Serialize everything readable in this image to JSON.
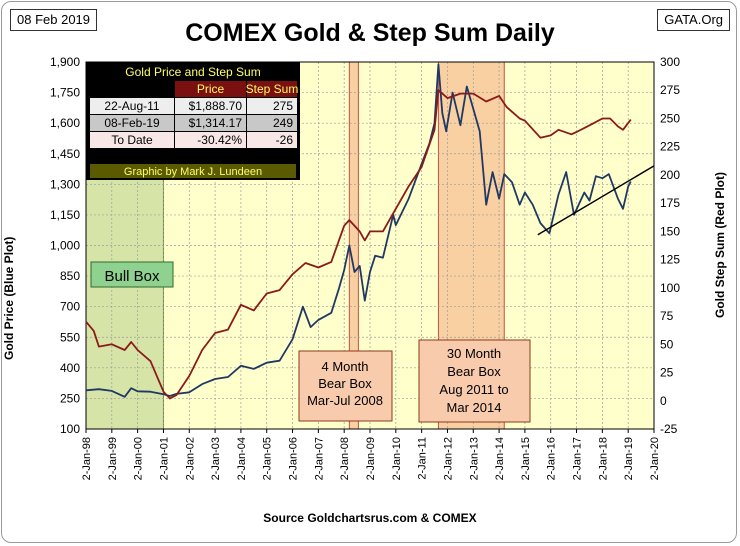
{
  "header": {
    "date_tag": "08 Feb 2019",
    "site_tag": "GATA.Org",
    "title": "COMEX Gold & Step Sum Daily"
  },
  "footer": {
    "source": "Source Goldchartsrus.com & COMEX"
  },
  "colors": {
    "plot_bg": "#ffffcc",
    "gold_line": "#1f3864",
    "step_line": "#8b1a1a",
    "bull_box": "#d6e4a8",
    "bear_box": "#f4b183",
    "table_bg": "#000000",
    "table_title": "#ffff66"
  },
  "chart_data": {
    "type": "line",
    "title": "COMEX Gold & Step Sum Daily",
    "xlabel": "",
    "ylabel": "Gold Price (Blue Plot)",
    "y2label": "Gold Step Sum (Red Plot)",
    "ylim": [
      100,
      1900
    ],
    "y2lim": [
      -25,
      300
    ],
    "grid": true,
    "x_tick_labels": [
      "2-Jan-98",
      "2-Jan-99",
      "2-Jan-00",
      "2-Jan-01",
      "2-Jan-02",
      "2-Jan-03",
      "2-Jan-04",
      "2-Jan-05",
      "2-Jan-06",
      "2-Jan-07",
      "2-Jan-08",
      "2-Jan-09",
      "2-Jan-10",
      "2-Jan-11",
      "2-Jan-12",
      "2-Jan-13",
      "2-Jan-14",
      "2-Jan-15",
      "2-Jan-16",
      "2-Jan-17",
      "2-Jan-18",
      "2-Jan-19",
      "2-Jan-20"
    ],
    "y_ticks": [
      100,
      250,
      400,
      550,
      700,
      850,
      1000,
      1150,
      1300,
      1450,
      1600,
      1750,
      1900
    ],
    "y2_ticks": [
      -25,
      0,
      25,
      50,
      75,
      100,
      125,
      150,
      175,
      200,
      225,
      250,
      275,
      300
    ],
    "series": [
      {
        "name": "Blue Plot",
        "axis": "left",
        "color": "#1f3864",
        "points": [
          [
            1998.0,
            290
          ],
          [
            1998.5,
            295
          ],
          [
            1999.0,
            287
          ],
          [
            1999.5,
            258
          ],
          [
            1999.75,
            300
          ],
          [
            2000.0,
            285
          ],
          [
            2000.5,
            283
          ],
          [
            2001.0,
            270
          ],
          [
            2001.25,
            262
          ],
          [
            2001.5,
            272
          ],
          [
            2002.0,
            280
          ],
          [
            2002.5,
            320
          ],
          [
            2003.0,
            345
          ],
          [
            2003.5,
            355
          ],
          [
            2004.0,
            410
          ],
          [
            2004.5,
            395
          ],
          [
            2005.0,
            425
          ],
          [
            2005.5,
            435
          ],
          [
            2006.0,
            540
          ],
          [
            2006.4,
            700
          ],
          [
            2006.7,
            600
          ],
          [
            2007.0,
            635
          ],
          [
            2007.5,
            670
          ],
          [
            2007.8,
            790
          ],
          [
            2008.0,
            880
          ],
          [
            2008.2,
            1000
          ],
          [
            2008.4,
            870
          ],
          [
            2008.6,
            900
          ],
          [
            2008.8,
            730
          ],
          [
            2009.0,
            870
          ],
          [
            2009.2,
            950
          ],
          [
            2009.5,
            940
          ],
          [
            2009.9,
            1150
          ],
          [
            2010.0,
            1100
          ],
          [
            2010.5,
            1230
          ],
          [
            2011.0,
            1400
          ],
          [
            2011.3,
            1500
          ],
          [
            2011.5,
            1600
          ],
          [
            2011.65,
            1888
          ],
          [
            2011.8,
            1650
          ],
          [
            2011.95,
            1560
          ],
          [
            2012.2,
            1750
          ],
          [
            2012.5,
            1590
          ],
          [
            2012.75,
            1780
          ],
          [
            2013.0,
            1670
          ],
          [
            2013.25,
            1560
          ],
          [
            2013.5,
            1200
          ],
          [
            2013.75,
            1360
          ],
          [
            2014.0,
            1230
          ],
          [
            2014.2,
            1350
          ],
          [
            2014.5,
            1310
          ],
          [
            2014.8,
            1200
          ],
          [
            2015.0,
            1260
          ],
          [
            2015.3,
            1200
          ],
          [
            2015.6,
            1110
          ],
          [
            2015.95,
            1060
          ],
          [
            2016.3,
            1250
          ],
          [
            2016.6,
            1360
          ],
          [
            2016.9,
            1150
          ],
          [
            2017.3,
            1260
          ],
          [
            2017.5,
            1220
          ],
          [
            2017.75,
            1340
          ],
          [
            2018.0,
            1330
          ],
          [
            2018.25,
            1350
          ],
          [
            2018.6,
            1230
          ],
          [
            2018.8,
            1180
          ],
          [
            2019.0,
            1290
          ],
          [
            2019.1,
            1314
          ]
        ]
      },
      {
        "name": "Red Plot",
        "axis": "right",
        "color": "#8b1a1a",
        "points": [
          [
            1998.0,
            70
          ],
          [
            1998.3,
            62
          ],
          [
            1998.5,
            48
          ],
          [
            1999.0,
            50
          ],
          [
            1999.5,
            45
          ],
          [
            1999.75,
            52
          ],
          [
            2000.0,
            45
          ],
          [
            2000.5,
            35
          ],
          [
            2001.0,
            8
          ],
          [
            2001.25,
            2
          ],
          [
            2001.5,
            5
          ],
          [
            2002.0,
            22
          ],
          [
            2002.5,
            45
          ],
          [
            2003.0,
            60
          ],
          [
            2003.5,
            63
          ],
          [
            2004.0,
            85
          ],
          [
            2004.5,
            80
          ],
          [
            2005.0,
            95
          ],
          [
            2005.5,
            98
          ],
          [
            2006.0,
            112
          ],
          [
            2006.5,
            122
          ],
          [
            2007.0,
            118
          ],
          [
            2007.5,
            123
          ],
          [
            2008.0,
            155
          ],
          [
            2008.2,
            160
          ],
          [
            2008.6,
            150
          ],
          [
            2008.8,
            142
          ],
          [
            2009.0,
            150
          ],
          [
            2009.5,
            150
          ],
          [
            2010.0,
            170
          ],
          [
            2010.5,
            190
          ],
          [
            2011.0,
            207
          ],
          [
            2011.5,
            240
          ],
          [
            2011.65,
            275
          ],
          [
            2012.0,
            268
          ],
          [
            2012.5,
            272
          ],
          [
            2013.0,
            272
          ],
          [
            2013.5,
            265
          ],
          [
            2014.0,
            270
          ],
          [
            2014.3,
            260
          ],
          [
            2014.8,
            250
          ],
          [
            2015.0,
            248
          ],
          [
            2015.6,
            233
          ],
          [
            2016.0,
            235
          ],
          [
            2016.3,
            240
          ],
          [
            2016.8,
            236
          ],
          [
            2017.0,
            238
          ],
          [
            2017.6,
            245
          ],
          [
            2018.0,
            250
          ],
          [
            2018.3,
            250
          ],
          [
            2018.6,
            243
          ],
          [
            2018.8,
            240
          ],
          [
            2019.1,
            249
          ]
        ]
      }
    ],
    "trend_line": [
      [
        2015.5,
        147
      ],
      [
        2020.0,
        208
      ]
    ],
    "table": {
      "title": "Gold Price and Step Sum",
      "headers": [
        "",
        "Price",
        "Step Sum"
      ],
      "rows": [
        [
          "22-Aug-11",
          "$1,888.70",
          "275"
        ],
        [
          "08-Feb-19",
          "$1,314.17",
          "249"
        ],
        [
          "To Date",
          "-30.42%",
          "-26"
        ]
      ],
      "credit": "Graphic by Mark J. Lundeen"
    },
    "annotations": [
      {
        "id": "bull-box",
        "x0": 1998.0,
        "x1": 2001.0,
        "label": "Bull Box"
      },
      {
        "id": "bear-2008",
        "x0": 2008.2,
        "x1": 2008.55,
        "label": [
          "4 Month",
          "Bear Box",
          "Mar-Jul 2008"
        ]
      },
      {
        "id": "bear-2011",
        "x0": 2011.65,
        "x1": 2014.2,
        "label": [
          "30 Month",
          "Bear Box",
          "Aug 2011 to",
          "Mar 2014"
        ]
      }
    ]
  }
}
